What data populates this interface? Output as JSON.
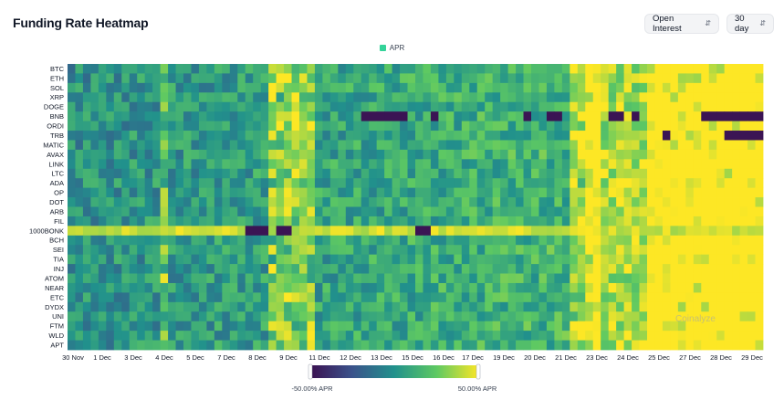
{
  "header": {
    "title": "Funding Rate Heatmap",
    "metric_select": "Open Interest",
    "period_select": "30 day"
  },
  "legend": {
    "label": "APR",
    "color": "#34d399"
  },
  "watermark": "Coinalyze",
  "chart_data": {
    "type": "heatmap",
    "title": "Funding Rate Heatmap",
    "legend": "APR",
    "rows": [
      "BTC",
      "ETH",
      "SOL",
      "XRP",
      "DOGE",
      "BNB",
      "ORDI",
      "TRB",
      "MATIC",
      "AVAX",
      "LINK",
      "LTC",
      "ADA",
      "OP",
      "DOT",
      "ARB",
      "FIL",
      "1000BONK",
      "BCH",
      "SEI",
      "TIA",
      "INJ",
      "ATOM",
      "NEAR",
      "ETC",
      "DYDX",
      "UNI",
      "FTM",
      "WLD",
      "APT"
    ],
    "x_tick_labels": [
      "30 Nov",
      "1 Dec",
      "3 Dec",
      "4 Dec",
      "5 Dec",
      "7 Dec",
      "8 Dec",
      "9 Dec",
      "11 Dec",
      "12 Dec",
      "13 Dec",
      "15 Dec",
      "16 Dec",
      "17 Dec",
      "19 Dec",
      "20 Dec",
      "21 Dec",
      "23 Dec",
      "24 Dec",
      "25 Dec",
      "27 Dec",
      "28 Dec",
      "29 Dec"
    ],
    "columns": 90,
    "color_scale": {
      "min": -50,
      "max": 50,
      "unit": "% APR",
      "min_label": "-50.00% APR",
      "max_label": "50.00% APR",
      "colors": [
        "#3b0f4f",
        "#3b528b",
        "#21918c",
        "#5ec962",
        "#fde725"
      ]
    },
    "negative_segments": [
      {
        "row": "BNB",
        "from": 38,
        "to": 43
      },
      {
        "row": "BNB",
        "from": 43,
        "to": 44
      },
      {
        "row": "BNB",
        "from": 47,
        "to": 48
      },
      {
        "row": "BNB",
        "from": 59,
        "to": 60
      },
      {
        "row": "BNB",
        "from": 62,
        "to": 64
      },
      {
        "row": "BNB",
        "from": 70,
        "to": 72
      },
      {
        "row": "BNB",
        "from": 73,
        "to": 74
      },
      {
        "row": "BNB",
        "from": 82,
        "to": 90
      },
      {
        "row": "TRB",
        "from": 77,
        "to": 78
      },
      {
        "row": "TRB",
        "from": 85,
        "to": 90
      },
      {
        "row": "1000BONK",
        "from": 23,
        "to": 26
      },
      {
        "row": "1000BONK",
        "from": 27,
        "to": 29
      },
      {
        "row": "1000BONK",
        "from": 45,
        "to": 47
      }
    ],
    "high_columns": [
      12,
      26,
      27,
      28,
      29,
      30,
      31,
      65,
      66,
      67,
      68,
      75,
      76,
      77,
      78,
      79,
      80,
      81,
      82,
      83,
      84,
      85,
      86,
      87,
      88,
      89
    ]
  }
}
